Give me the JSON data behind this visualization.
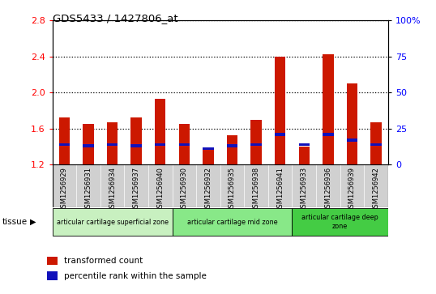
{
  "title": "GDS5433 / 1427806_at",
  "samples": [
    "GSM1256929",
    "GSM1256931",
    "GSM1256934",
    "GSM1256937",
    "GSM1256940",
    "GSM1256930",
    "GSM1256932",
    "GSM1256935",
    "GSM1256938",
    "GSM1256941",
    "GSM1256933",
    "GSM1256936",
    "GSM1256939",
    "GSM1256942"
  ],
  "transformed_count": [
    1.72,
    1.65,
    1.67,
    1.72,
    1.93,
    1.65,
    1.38,
    1.53,
    1.7,
    2.4,
    1.4,
    2.43,
    2.1,
    1.67
  ],
  "percentile_rank": [
    14,
    13,
    14,
    13,
    14,
    14,
    11,
    13,
    14,
    21,
    14,
    21,
    17,
    14
  ],
  "baseline": 1.2,
  "ylim_left": [
    1.2,
    2.8
  ],
  "ylim_right": [
    0,
    100
  ],
  "yticks_left": [
    1.2,
    1.6,
    2.0,
    2.4,
    2.8
  ],
  "yticks_right": [
    0,
    25,
    50,
    75,
    100
  ],
  "groups": [
    {
      "label": "articular cartilage superficial zone",
      "start": 0,
      "end": 5,
      "color": "#c8f0c0"
    },
    {
      "label": "articular cartilage mid zone",
      "start": 5,
      "end": 10,
      "color": "#88e888"
    },
    {
      "label": "articular cartilage deep\nzone",
      "start": 10,
      "end": 14,
      "color": "#44cc44"
    }
  ],
  "bar_color": "#cc1800",
  "blue_color": "#1111bb",
  "bar_width": 0.45,
  "bg_color": "#d0d0d0",
  "plot_bg": "#ffffff",
  "legend_items": [
    {
      "color": "#cc1800",
      "label": "transformed count"
    },
    {
      "color": "#1111bb",
      "label": "percentile rank within the sample"
    }
  ]
}
